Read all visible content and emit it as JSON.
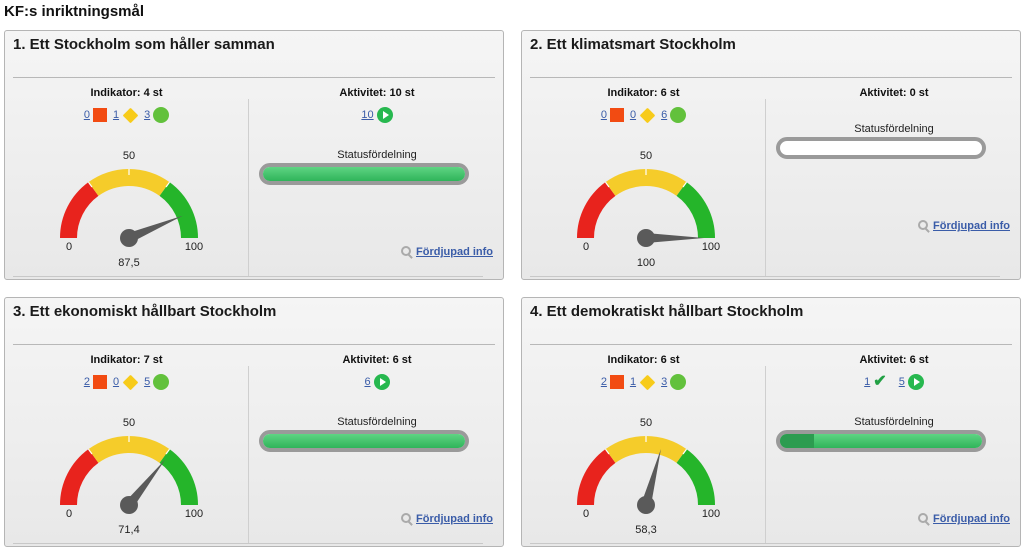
{
  "page": {
    "title": "KF:s inriktningsmål"
  },
  "cards": [
    {
      "title": "1. Ett Stockholm som håller samman",
      "indicator_heading": "Indikator: 4 st",
      "indicator_counts": {
        "red": "0",
        "yellow": "1",
        "green": "3"
      },
      "activity_heading": "Aktivitet: 10 st",
      "activity_counts": [
        {
          "value": "10",
          "icon": "play-icon"
        }
      ],
      "status_label": "Statusfördelning",
      "status_fill": {
        "complete": 0.0,
        "ongoing": 1.0
      },
      "gauge": {
        "min_label": "0",
        "mid_label": "50",
        "max_label": "100",
        "value": 87.5,
        "value_label": "87,5"
      },
      "info_link": "Fördjupad info"
    },
    {
      "title": "2. Ett klimatsmart Stockholm",
      "indicator_heading": "Indikator: 6 st",
      "indicator_counts": {
        "red": "0",
        "yellow": "0",
        "green": "6"
      },
      "activity_heading": "Aktivitet: 0 st",
      "activity_counts": [],
      "status_label": "Statusfördelning",
      "status_fill": {
        "complete": 0.0,
        "ongoing": 0.0
      },
      "gauge": {
        "min_label": "0",
        "mid_label": "50",
        "max_label": "100",
        "value": 100,
        "value_label": "100"
      },
      "info_link": "Fördjupad info"
    },
    {
      "title": "3. Ett ekonomiskt hållbart Stockholm",
      "indicator_heading": "Indikator: 7 st",
      "indicator_counts": {
        "red": "2",
        "yellow": "0",
        "green": "5"
      },
      "activity_heading": "Aktivitet: 6 st",
      "activity_counts": [
        {
          "value": "6",
          "icon": "play-icon"
        }
      ],
      "status_label": "Statusfördelning",
      "status_fill": {
        "complete": 0.0,
        "ongoing": 1.0
      },
      "gauge": {
        "min_label": "0",
        "mid_label": "50",
        "max_label": "100",
        "value": 71.4,
        "value_label": "71,4"
      },
      "info_link": "Fördjupad info"
    },
    {
      "title": "4. Ett demokratiskt hållbart Stockholm",
      "indicator_heading": "Indikator: 6 st",
      "indicator_counts": {
        "red": "2",
        "yellow": "1",
        "green": "3"
      },
      "activity_heading": "Aktivitet: 6 st",
      "activity_counts": [
        {
          "value": "1",
          "icon": "check-icon"
        },
        {
          "value": "5",
          "icon": "play-icon"
        }
      ],
      "status_label": "Statusfördelning",
      "status_fill": {
        "complete": 0.167,
        "ongoing": 0.833
      },
      "gauge": {
        "min_label": "0",
        "mid_label": "50",
        "max_label": "100",
        "value": 58.3,
        "value_label": "58,3"
      },
      "info_link": "Fördjupad info"
    }
  ],
  "colors": {
    "red": "#e8231d",
    "yellow": "#f5cc2a",
    "green": "#25b52a",
    "needle": "#5a5a5a",
    "link": "#3a5ca8"
  }
}
